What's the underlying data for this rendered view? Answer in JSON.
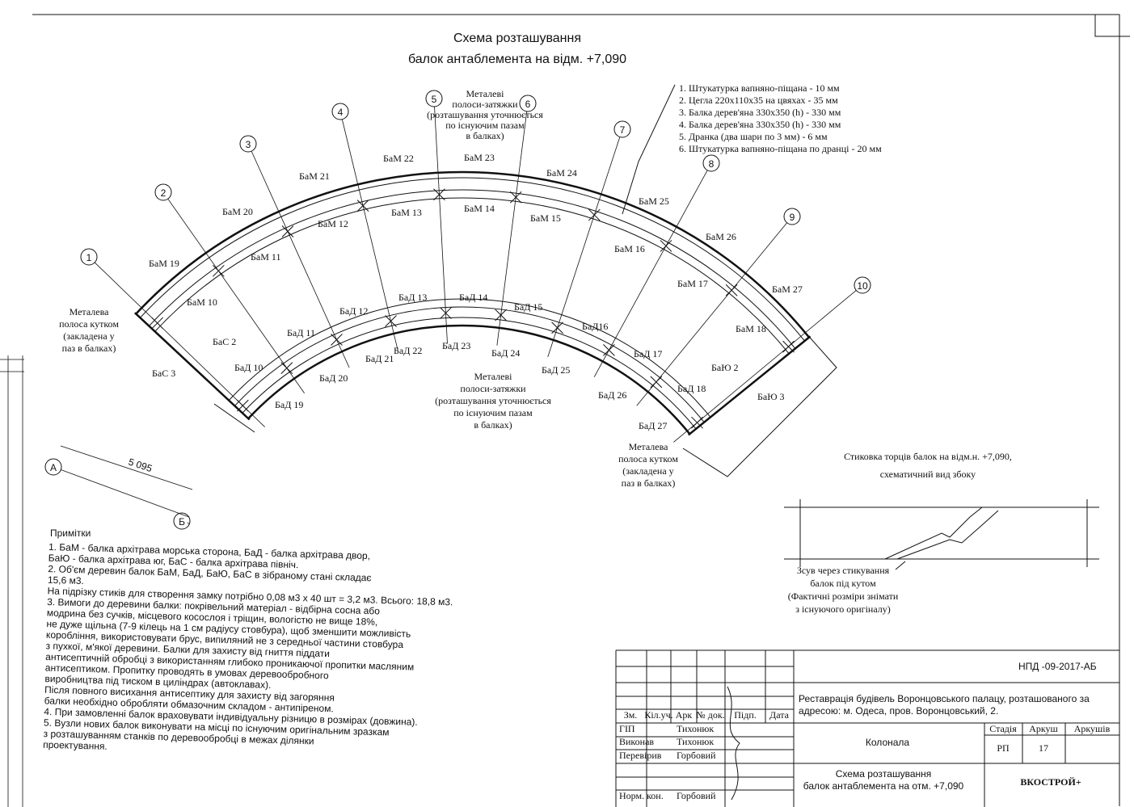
{
  "title": [
    "Схема розташування",
    "балок антаблемента на відм. +7,090"
  ],
  "legend": [
    "1. Штукатурка вапняно-піщана           - 10 мм",
    "2. Цегла 220х110х35 на цвяхах          - 35 мм",
    "3. Балка дерев'яна 330х350 (h)   - 330 мм",
    "4. Балка дерев'яна 330х350 (h)        - 330 мм",
    "5. Дранка (два шари по 3 мм)         - 6  мм",
    "6. Штукатурка вапняно-піщана по дранці   - 20 мм"
  ],
  "annotations": {
    "top_straps": [
      "Металеві",
      "полоси-затяжки",
      "(розташування уточнюється",
      "по існуючим пазам",
      "в балках)"
    ],
    "bottom_straps": [
      "Металеві",
      "полоси-затяжки",
      "(розташування уточнюється",
      "по існуючим пазам",
      "в балках)"
    ],
    "left_angle": [
      "Металева",
      "полоса кутком",
      "(закладена у",
      "паз в балках)"
    ],
    "right_angle": [
      "Металева",
      "полоса кутком",
      "(закладена у",
      "паз в балках)"
    ]
  },
  "axes": [
    "1",
    "2",
    "3",
    "4",
    "5",
    "6",
    "7",
    "8",
    "9",
    "10"
  ],
  "grid_letters": [
    "А",
    "Б"
  ],
  "dimension": "5 095",
  "beams": [
    "БаМ 19",
    "БаМ 20",
    "БаМ 21",
    "БаМ 22",
    "БаМ 23",
    "БаМ 24",
    "БаМ 25",
    "БаМ 26",
    "БаМ 27",
    "БаМ 10",
    "БаМ 11",
    "БаМ 12",
    "БаМ 13",
    "БаМ 14",
    "БаМ 15",
    "БаМ 16",
    "БаМ 17",
    "БаМ 18",
    "БаД 11",
    "БаД 12",
    "БаД 13",
    "БаД 14",
    "БаД 15",
    "БаД16",
    "БаД 17",
    "БаД 18",
    "БаД 10",
    "БаД 19",
    "БаД 20",
    "БаД 21",
    "БаД 22",
    "БаД 23",
    "БаД 24",
    "БаД 25",
    "БаД 26",
    "БаД 27",
    "БаС 2",
    "БаС 3",
    "БаЮ 2",
    "БаЮ 3"
  ],
  "notes": {
    "heading": "Примітки",
    "lines": [
      "1.      БаМ - балка архітрава морська сторона, БаД - балка архітрава двор,",
      "БаЮ - балка архітрава юг, БаС - балка архітрава північ.",
      "2.      Об'єм деревин балок БаМ, БаД, БаЮ, БаС в зібраному стані складає",
      "15,6 м3.",
      "На підрізку стиків для створення замку потрібно 0,08 м3 х 40 шт = 3,2 м3. Всього: 18,8 м3.",
      "3.      Вимоги до деревини балки: покрівельний матеріал - відбірна сосна або",
      "модрина без сучків, місцевого косослоя і тріщин, вологістю не вище 18%,",
      "не дуже щільна (7-9 кілець на 1 см радіусу стовбура), щоб зменшити можливість",
      "коробління, використовувати брус, випиляний не з середньої частини стовбура",
      "з пухкої, м'якої деревини. Балки для захисту від гниття піддати",
      "антисептичній обробці з використанням глибоко проникаючої пропитки масляним",
      "антисептиком. Пропитку проводять в умовах деревообробного",
      "виробництва під тиском в циліндрах (автоклавах).",
      "Після повного висихання антисептику для захисту від загоряння",
      "балки необхідно обробляти обмазочним складом - антипіреном.",
      "4.      При замовленні балок враховувати індивідуальну різницю в розмірах (довжина).",
      "5.      Вузли нових балок виконувати на місці по існуючим оригінальним зразкам",
      "з розташуванням станків по деревообробці в межах ділянки",
      "проектування."
    ]
  },
  "joint_view": {
    "title": [
      "Стиковка торців балок на відм.н. +7,090,",
      "схематичний вид збоку"
    ],
    "note": [
      "Зсув через стикування",
      "балок під кутом",
      "(Фактичні розміри знімати",
      "з існуючого оригіналу)"
    ]
  },
  "title_block": {
    "code": "НПД -09-2017-АБ",
    "project": [
      "Реставрація будівель Воронцовського палацу, розташованого за",
      "адресою: м. Одеса, пров. Воронцовський, 2."
    ],
    "headers": [
      "Зм.",
      "Кіл.уч.",
      "Арк",
      "№ док.",
      "Підп.",
      "Дата"
    ],
    "roles": [
      "ГІП",
      "Виконав",
      "Перевірив",
      "Норм. кон."
    ],
    "names": [
      "Тихонюк",
      "Тихонюк",
      "Горбовий",
      "Горбовий"
    ],
    "object": "Колонала",
    "stage_headers": [
      "Стадія",
      "Аркуш",
      "Аркушів"
    ],
    "stage": "РП",
    "sheet": "17",
    "sheet_title": [
      "Схема розташування",
      "балок антаблемента на отм. +7,090"
    ],
    "company": "ВКОСТРОЙ+"
  }
}
